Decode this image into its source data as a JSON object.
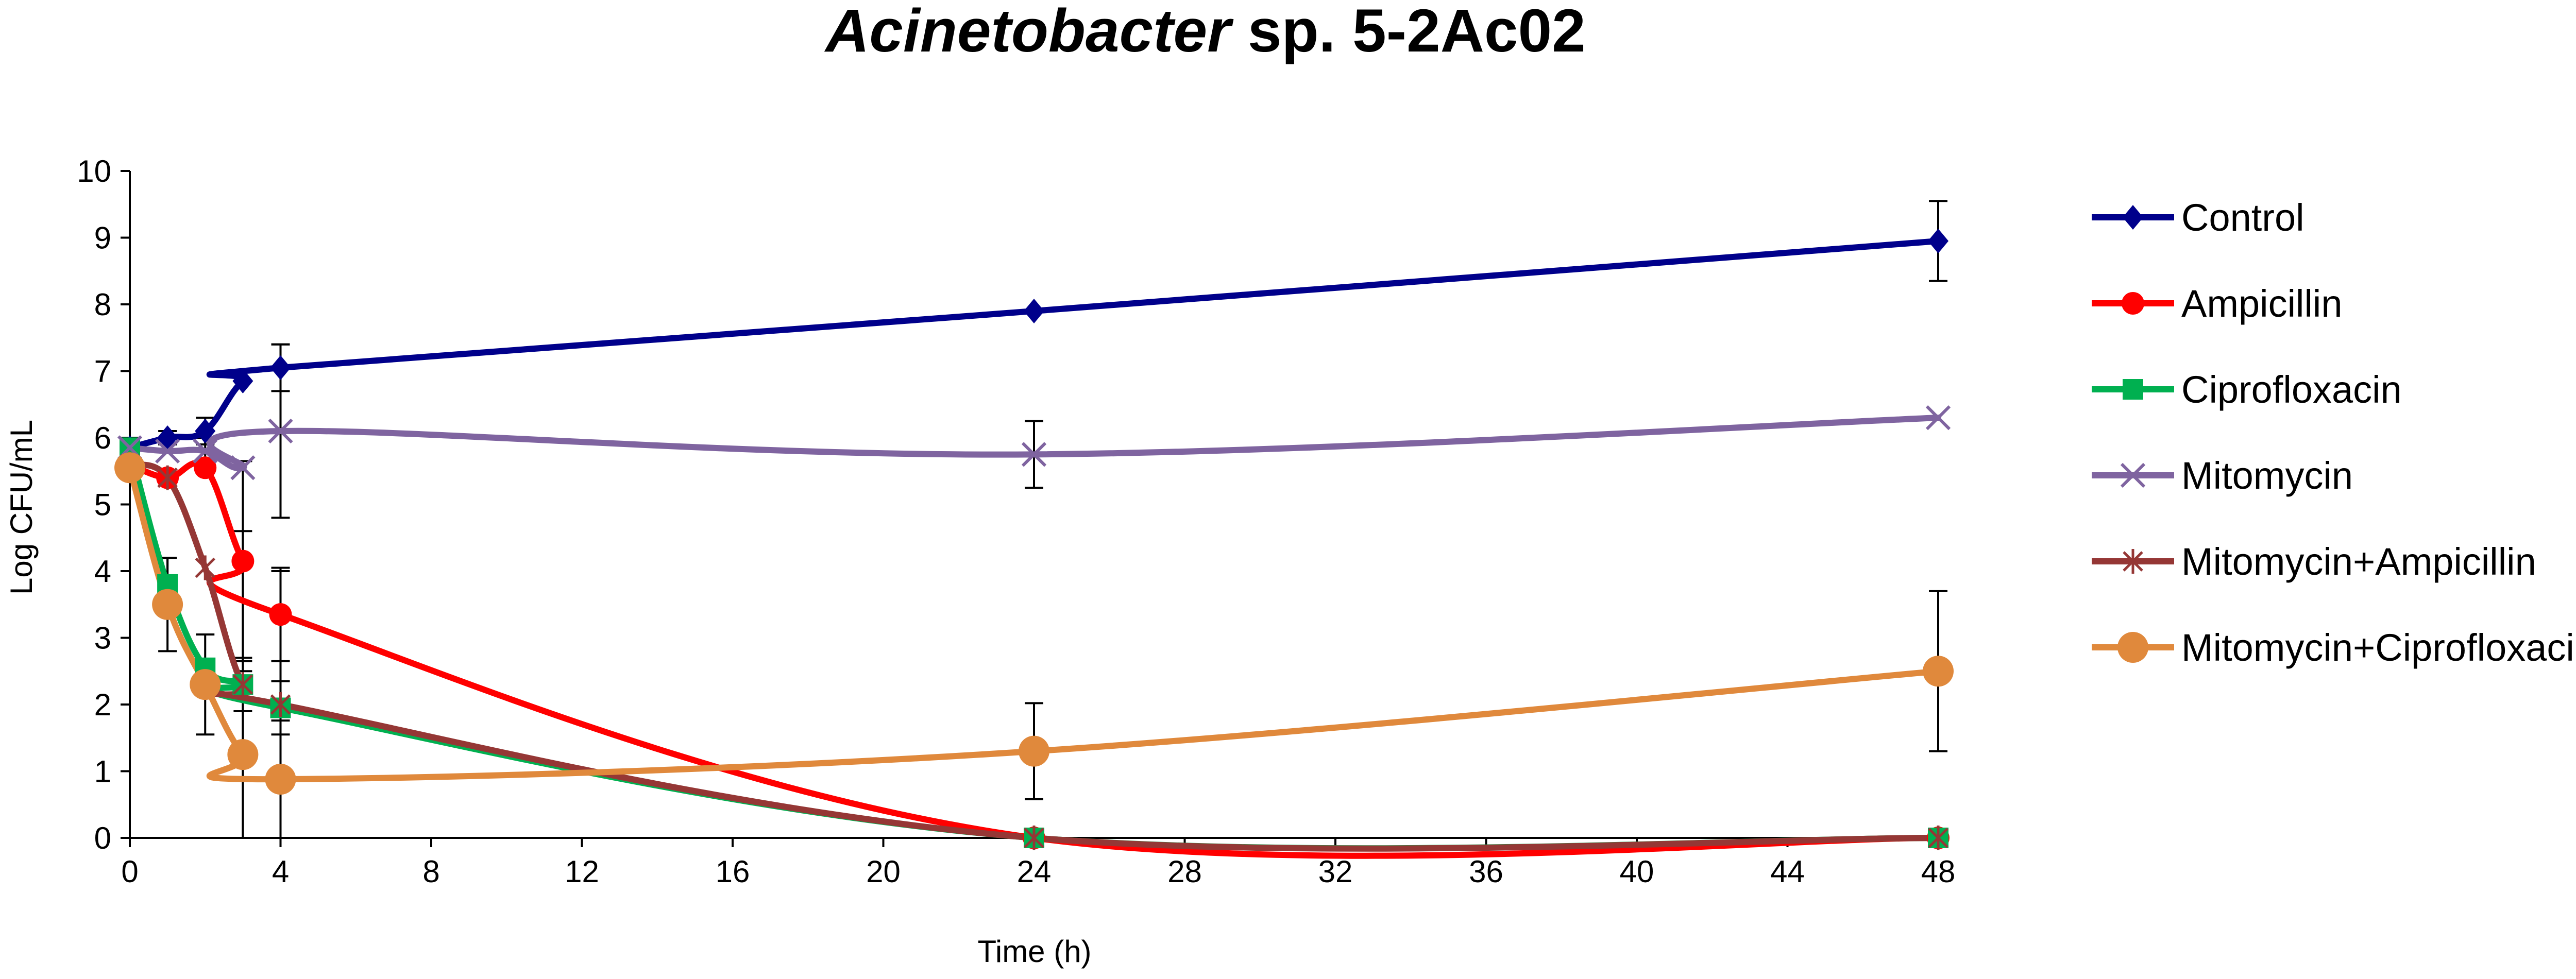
{
  "chart_data": {
    "type": "line",
    "title": {
      "italic": "Acinetobacter",
      "rest": " sp. 5-2Ac02"
    },
    "xlabel": "Time (h)",
    "ylabel": "Log CFU/mL",
    "xlim": [
      0,
      48
    ],
    "ylim": [
      0,
      10
    ],
    "x_ticks": [
      0,
      4,
      8,
      12,
      16,
      20,
      24,
      28,
      32,
      36,
      40,
      44,
      48
    ],
    "y_ticks": [
      0,
      1,
      2,
      3,
      4,
      5,
      6,
      7,
      8,
      9,
      10
    ],
    "grid": false,
    "legend_position": "right",
    "series": [
      {
        "name": "Control",
        "color": "#00008B",
        "marker": "diamond",
        "x": [
          0,
          1,
          2,
          3,
          4,
          24,
          48
        ],
        "y": [
          5.85,
          6.0,
          6.1,
          6.85,
          7.05,
          7.9,
          8.95
        ],
        "err": [
          0.15,
          0.1,
          0.2,
          0.0,
          0.35,
          0.0,
          0.6
        ]
      },
      {
        "name": "Ampicillin",
        "color": "#FF0000",
        "marker": "circle",
        "x": [
          0,
          1,
          2,
          3,
          4,
          24,
          48
        ],
        "y": [
          5.6,
          5.4,
          5.55,
          4.15,
          3.35,
          0.0,
          0.0
        ],
        "err": [
          0.0,
          0.0,
          0.0,
          1.5,
          0.7,
          0.0,
          0.0
        ]
      },
      {
        "name": "Ciprofloxacin",
        "color": "#00B050",
        "marker": "square",
        "x": [
          0,
          1,
          2,
          3,
          4,
          24,
          48
        ],
        "y": [
          5.85,
          3.8,
          2.55,
          2.3,
          1.95,
          0.0,
          0.0
        ],
        "err": [
          0.0,
          0.4,
          0.0,
          0.4,
          0.4,
          0.0,
          0.0
        ]
      },
      {
        "name": "Mitomycin",
        "color": "#7F64A0",
        "marker": "x",
        "x": [
          0,
          1,
          2,
          3,
          4,
          24,
          48
        ],
        "y": [
          5.85,
          5.8,
          5.8,
          5.55,
          6.1,
          5.75,
          6.3
        ],
        "err": [
          0.15,
          0.0,
          0.2,
          0.0,
          1.3,
          0.5,
          0.0
        ]
      },
      {
        "name": "Mitomycin+Ampicillin",
        "color": "#953735",
        "marker": "star",
        "x": [
          0,
          1,
          2,
          3,
          4,
          24,
          48
        ],
        "y": [
          5.6,
          5.4,
          4.05,
          2.3,
          2.0,
          0.0,
          0.0
        ],
        "err": [
          0.0,
          0.0,
          0.0,
          2.3,
          2.0,
          0.0,
          0.0
        ]
      },
      {
        "name": "Mitomycin+Ciprofloxacin",
        "color": "#E0893C",
        "marker": "circle-large",
        "x": [
          0,
          1,
          2,
          3,
          4,
          24,
          48
        ],
        "y": [
          5.55,
          3.5,
          2.3,
          1.25,
          0.88,
          1.3,
          2.5
        ],
        "err": [
          0.0,
          0.7,
          0.75,
          1.25,
          0.88,
          0.72,
          1.2
        ]
      }
    ]
  }
}
